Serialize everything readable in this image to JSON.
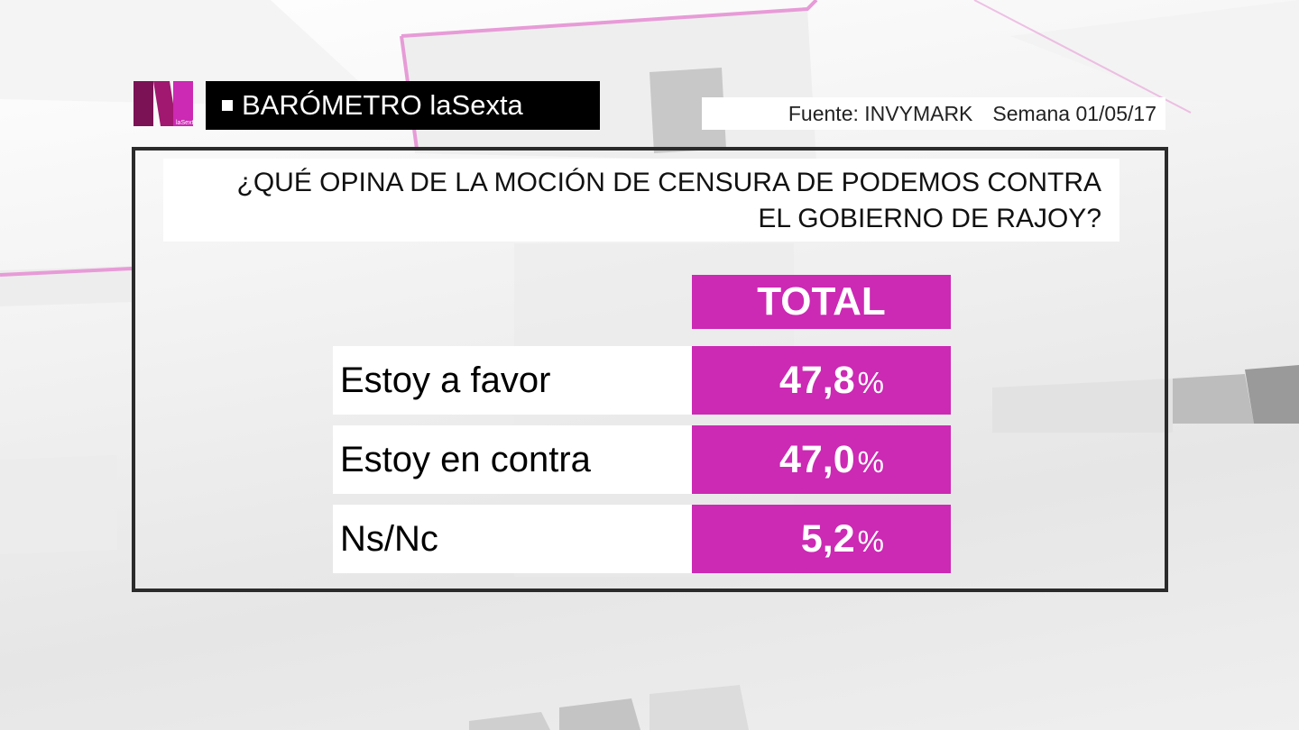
{
  "header": {
    "program_title": "BARÓMETRO laSexta",
    "source": "Fuente: INVYMARK",
    "week": "Semana 01/05/17",
    "logo_text": "laSexta"
  },
  "question": {
    "line1": "¿QUÉ OPINA DE LA MOCIÓN DE CENSURA DE PODEMOS CONTRA",
    "line2": "EL GOBIERNO DE RAJOY?"
  },
  "colors": {
    "accent": "#cc29b4",
    "logo_dark": "#7a1255",
    "logo_light": "#cc29b4"
  },
  "chart_data": {
    "type": "table",
    "column_header": "TOTAL",
    "unit": "%",
    "rows": [
      {
        "label": "Estoy a favor",
        "value": 47.8,
        "display": "47,8"
      },
      {
        "label": "Estoy en contra",
        "value": 47.0,
        "display": "47,0"
      },
      {
        "label": "Ns/Nc",
        "value": 5.2,
        "display": "5,2"
      }
    ]
  }
}
